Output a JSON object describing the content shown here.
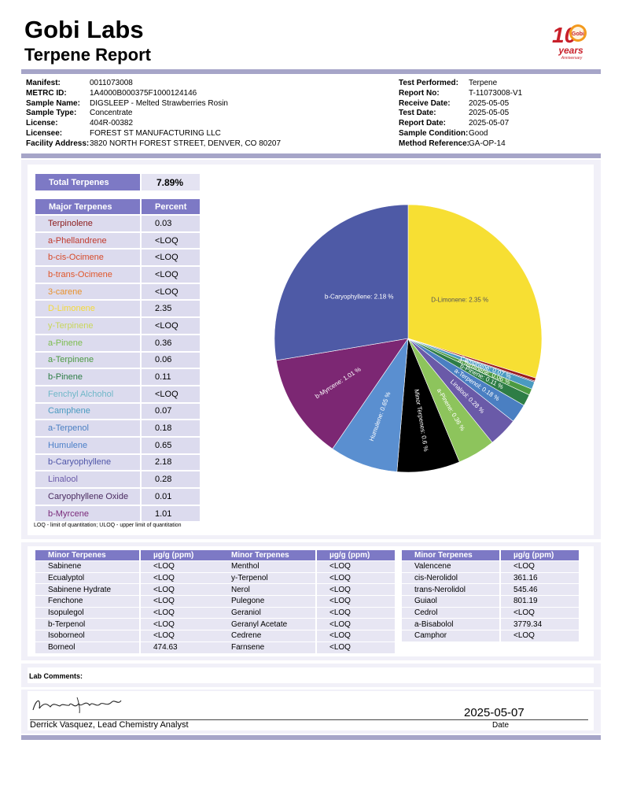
{
  "header": {
    "company": "Gobi Labs",
    "report_title": "Terpene Report",
    "logo": {
      "big_numeral": "10",
      "badge": "Gobi",
      "line1": "years",
      "line2": "Anniversary"
    }
  },
  "meta_left": [
    {
      "label": "Manifest:",
      "value": "0011073008"
    },
    {
      "label": "METRC ID:",
      "value": "1A4000B000375F1000124146"
    },
    {
      "label": "Sample Name:",
      "value": "DIGSLEEP - Melted Strawberries Rosin"
    },
    {
      "label": "Sample Type:",
      "value": "Concentrate"
    },
    {
      "label": "License:",
      "value": "404R-00382"
    },
    {
      "label": "Licensee:",
      "value": "FOREST ST MANUFACTURING LLC"
    },
    {
      "label": "Facility Address:",
      "value": "3820 NORTH FOREST STREET, DENVER, CO 80207"
    }
  ],
  "meta_right": [
    {
      "label": "Test Performed:",
      "value": "Terpene"
    },
    {
      "label": "Report No:",
      "value": "T-11073008-V1"
    },
    {
      "label": "Receive Date:",
      "value": "2025-05-05"
    },
    {
      "label": "Test Date:",
      "value": "2025-05-05"
    },
    {
      "label": "Report Date:",
      "value": "2025-05-07"
    },
    {
      "label": "Sample Condition:",
      "value": "Good"
    },
    {
      "label": "Method Reference:",
      "value": "GA-OP-14"
    }
  ],
  "total": {
    "label": "Total Terpenes",
    "value": "7.89%"
  },
  "major": {
    "headers": [
      "Major Terpenes",
      "Percent"
    ],
    "rows": [
      {
        "name": "Terpinolene",
        "value": "0.03",
        "color": "#8b1a1a"
      },
      {
        "name": "a-Phellandrene",
        "value": "<LOQ",
        "color": "#c0392b"
      },
      {
        "name": "b-cis-Ocimene",
        "value": "<LOQ",
        "color": "#d64a2a"
      },
      {
        "name": "b-trans-Ocimene",
        "value": "<LOQ",
        "color": "#e0562a"
      },
      {
        "name": "3-carene",
        "value": "<LOQ",
        "color": "#e8912a"
      },
      {
        "name": "D-Limonene",
        "value": "2.35",
        "color": "#f3d93a"
      },
      {
        "name": "y-Terpinene",
        "value": "<LOQ",
        "color": "#c8d65a"
      },
      {
        "name": "a-Pinene",
        "value": "0.36",
        "color": "#7cbc4e"
      },
      {
        "name": "a-Terpinene",
        "value": "0.06",
        "color": "#4c9a42"
      },
      {
        "name": "b-Pinene",
        "value": "0.11",
        "color": "#2e7d46"
      },
      {
        "name": "Fenchyl Alchohol",
        "value": "<LOQ",
        "color": "#6fb7c8"
      },
      {
        "name": "Camphene",
        "value": "0.07",
        "color": "#4a9ac0"
      },
      {
        "name": "a-Terpenol",
        "value": "0.18",
        "color": "#4a7fc2"
      },
      {
        "name": "Humulene",
        "value": "0.65",
        "color": "#4a7fc8"
      },
      {
        "name": "b-Caryophyllene",
        "value": "2.18",
        "color": "#4e55a8"
      },
      {
        "name": "Linalool",
        "value": "0.28",
        "color": "#6a5aa8"
      },
      {
        "name": "Caryophyllene Oxide",
        "value": "0.01",
        "color": "#4a2a60"
      },
      {
        "name": "b-Myrcene",
        "value": "1.01",
        "color": "#7a2a7a"
      }
    ]
  },
  "loq_note": "LOQ - limit of quantitation; ULOQ - upper limit of quantitation",
  "minor_tables": [
    {
      "headers": [
        "Minor Terpenes",
        "µg/g (ppm)"
      ],
      "rows": [
        [
          "Sabinene",
          "<LOQ"
        ],
        [
          "Ecualyptol",
          "<LOQ"
        ],
        [
          "Sabinene Hydrate",
          "<LOQ"
        ],
        [
          "Fenchone",
          "<LOQ"
        ],
        [
          "Isopulegol",
          "<LOQ"
        ],
        [
          "b-Terpenol",
          "<LOQ"
        ],
        [
          "Isoborneol",
          "<LOQ"
        ],
        [
          "Borneol",
          "474.63"
        ]
      ]
    },
    {
      "headers": [
        "Minor Terpenes",
        "µg/g (ppm)"
      ],
      "rows": [
        [
          "Menthol",
          "<LOQ"
        ],
        [
          "y-Terpenol",
          "<LOQ"
        ],
        [
          "Nerol",
          "<LOQ"
        ],
        [
          "Pulegone",
          "<LOQ"
        ],
        [
          "Geraniol",
          "<LOQ"
        ],
        [
          "Geranyl Acetate",
          "<LOQ"
        ],
        [
          "Cedrene",
          "<LOQ"
        ],
        [
          "Farnsene",
          "<LOQ"
        ]
      ]
    },
    {
      "headers": [
        "Minor Terpenes",
        "µg/g (ppm)"
      ],
      "rows": [
        [
          "Valencene",
          "<LOQ"
        ],
        [
          "cis-Nerolidol",
          "361.16"
        ],
        [
          "trans-Nerolidol",
          "545.46"
        ],
        [
          "Guiaol",
          "801.19"
        ],
        [
          "Cedrol",
          "<LOQ"
        ],
        [
          "a-Bisabolol",
          "3779.34"
        ],
        [
          "Camphor",
          "<LOQ"
        ]
      ]
    }
  ],
  "comments_label": "Lab Comments:",
  "signature": {
    "script_text": "Derrick Vasquez",
    "signer": "Derrick Vasquez, Lead Chemistry Analyst",
    "date": "2025-05-07",
    "date_label": "Date"
  },
  "chart_data": {
    "type": "pie",
    "unit": "%",
    "slices": [
      {
        "label": "D-Limonene",
        "value": 2.35,
        "color": "#f7df33",
        "text_color": "#555555",
        "show": true
      },
      {
        "label": "Terpinolene",
        "value": 0.03,
        "color": "#9b1b1b",
        "show": false
      },
      {
        "label": "Caryophyllene Oxide",
        "value": 0.01,
        "color": "#4a2a60",
        "show": false
      },
      {
        "label": "Camphene",
        "value": 0.07,
        "color": "#4a9ac0",
        "text_color": "#ffffff",
        "show": true
      },
      {
        "label": "a-Terpinene",
        "value": 0.06,
        "color": "#4c9a42",
        "text_color": "#ffffff",
        "show": true
      },
      {
        "label": "b-Pinene",
        "value": 0.11,
        "color": "#2e7d46",
        "text_color": "#ffffff",
        "show": true
      },
      {
        "label": "a-Terpenol",
        "value": 0.18,
        "color": "#4a7fc2",
        "text_color": "#ffffff",
        "show": true
      },
      {
        "label": "Linalool",
        "value": 0.28,
        "color": "#6a5aa8",
        "text_color": "#ffffff",
        "show": true
      },
      {
        "label": "a-Pinene",
        "value": 0.36,
        "color": "#8dc45c",
        "text_color": "#ffffff",
        "show": true
      },
      {
        "label": "Minor Terpenes",
        "value": 0.6,
        "color": "#000000",
        "text_color": "#ffffff",
        "show": true
      },
      {
        "label": "Humulene",
        "value": 0.65,
        "color": "#5a8fd0",
        "text_color": "#ffffff",
        "show": true
      },
      {
        "label": "b-Myrcene",
        "value": 1.01,
        "color": "#7c2773",
        "text_color": "#ffffff",
        "show": true
      },
      {
        "label": "b-Caryophyllene",
        "value": 2.18,
        "color": "#4e5aa6",
        "text_color": "#ffffff",
        "show": true
      }
    ]
  }
}
